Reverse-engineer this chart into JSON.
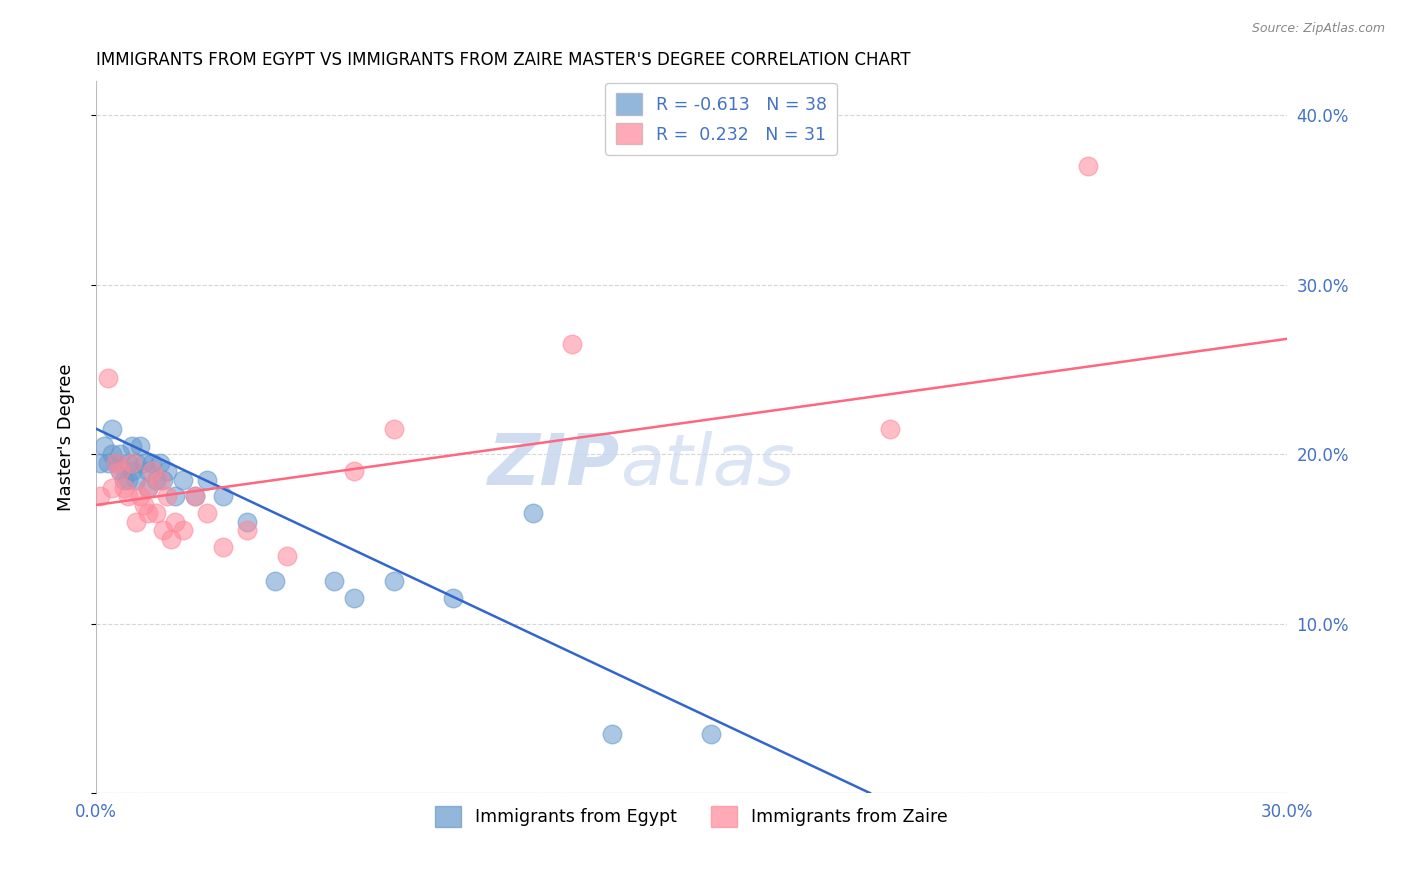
{
  "title": "IMMIGRANTS FROM EGYPT VS IMMIGRANTS FROM ZAIRE MASTER'S DEGREE CORRELATION CHART",
  "source": "Source: ZipAtlas.com",
  "ylabel": "Master's Degree",
  "xlim": [
    0.0,
    0.3
  ],
  "ylim": [
    0.0,
    0.42
  ],
  "xticks": [
    0.0,
    0.05,
    0.1,
    0.15,
    0.2,
    0.25,
    0.3
  ],
  "yticks": [
    0.0,
    0.1,
    0.2,
    0.3,
    0.4
  ],
  "ytick_labels_right": [
    "",
    "10.0%",
    "20.0%",
    "30.0%",
    "40.0%"
  ],
  "xtick_labels": [
    "0.0%",
    "",
    "",
    "",
    "",
    "",
    "30.0%"
  ],
  "legend_r1": "R = -0.613",
  "legend_n1": "N = 38",
  "legend_r2": "R =  0.232",
  "legend_n2": "N = 31",
  "color_egypt": "#6699CC",
  "color_zaire": "#FF8899",
  "color_line_egypt": "#3366CC",
  "color_line_zaire": "#FF6680",
  "watermark_zip": "ZIP",
  "watermark_atlas": "atlas",
  "egypt_x": [
    0.001,
    0.002,
    0.003,
    0.004,
    0.004,
    0.005,
    0.006,
    0.006,
    0.007,
    0.008,
    0.008,
    0.009,
    0.009,
    0.01,
    0.01,
    0.011,
    0.012,
    0.013,
    0.013,
    0.014,
    0.015,
    0.016,
    0.017,
    0.018,
    0.02,
    0.022,
    0.025,
    0.028,
    0.032,
    0.038,
    0.045,
    0.06,
    0.065,
    0.075,
    0.09,
    0.11,
    0.13,
    0.155
  ],
  "egypt_y": [
    0.195,
    0.205,
    0.195,
    0.215,
    0.2,
    0.195,
    0.2,
    0.19,
    0.185,
    0.195,
    0.185,
    0.205,
    0.19,
    0.195,
    0.185,
    0.205,
    0.195,
    0.19,
    0.18,
    0.195,
    0.185,
    0.195,
    0.185,
    0.19,
    0.175,
    0.185,
    0.175,
    0.185,
    0.175,
    0.16,
    0.125,
    0.125,
    0.115,
    0.125,
    0.115,
    0.165,
    0.035,
    0.035
  ],
  "zaire_x": [
    0.001,
    0.003,
    0.004,
    0.005,
    0.006,
    0.007,
    0.008,
    0.009,
    0.01,
    0.011,
    0.012,
    0.013,
    0.013,
    0.014,
    0.015,
    0.016,
    0.017,
    0.018,
    0.019,
    0.02,
    0.022,
    0.025,
    0.028,
    0.032,
    0.038,
    0.048,
    0.065,
    0.075,
    0.12,
    0.2,
    0.25
  ],
  "zaire_y": [
    0.175,
    0.245,
    0.18,
    0.195,
    0.19,
    0.18,
    0.175,
    0.195,
    0.16,
    0.175,
    0.17,
    0.18,
    0.165,
    0.19,
    0.165,
    0.185,
    0.155,
    0.175,
    0.15,
    0.16,
    0.155,
    0.175,
    0.165,
    0.145,
    0.155,
    0.14,
    0.19,
    0.215,
    0.265,
    0.215,
    0.37
  ],
  "egypt_line_x": [
    0.0,
    0.195
  ],
  "egypt_line_y": [
    0.215,
    0.0
  ],
  "zaire_line_x": [
    0.0,
    0.3
  ],
  "zaire_line_y": [
    0.17,
    0.268
  ]
}
